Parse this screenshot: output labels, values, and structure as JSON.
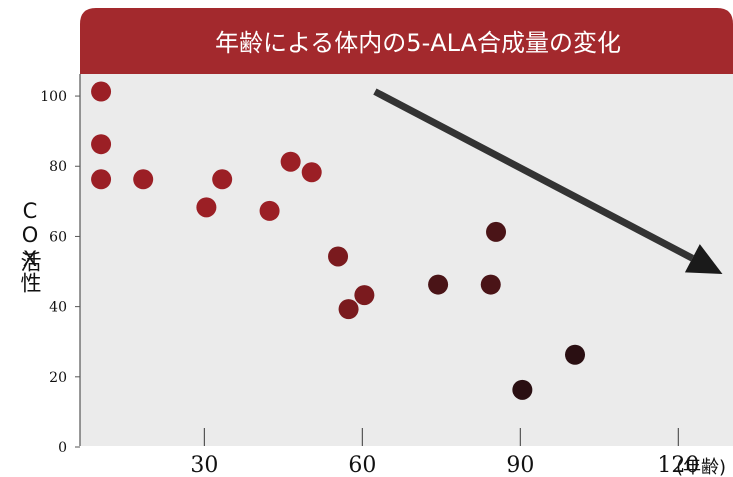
{
  "chart_data": {
    "type": "scatter",
    "title": "年齢による体内の5-ALA合成量の変化",
    "ylabel_latin": "COX",
    "ylabel_kanji": "活性",
    "xlabel_unit": "(年齢)",
    "xlim": [
      6,
      130
    ],
    "ylim": [
      0,
      106
    ],
    "x_ticks": [
      30,
      60,
      90,
      120
    ],
    "y_ticks": [
      0,
      20,
      40,
      60,
      80,
      100
    ],
    "grid": false,
    "trend_arrow": {
      "from": [
        62,
        101
      ],
      "to": [
        128,
        49
      ]
    },
    "points": [
      {
        "x": 10,
        "y": 101,
        "tone": "light"
      },
      {
        "x": 10,
        "y": 86,
        "tone": "light"
      },
      {
        "x": 10,
        "y": 76,
        "tone": "light"
      },
      {
        "x": 18,
        "y": 76,
        "tone": "light"
      },
      {
        "x": 30,
        "y": 68,
        "tone": "light"
      },
      {
        "x": 33,
        "y": 76,
        "tone": "light"
      },
      {
        "x": 42,
        "y": 67,
        "tone": "light"
      },
      {
        "x": 46,
        "y": 81,
        "tone": "light"
      },
      {
        "x": 50,
        "y": 78,
        "tone": "light"
      },
      {
        "x": 55,
        "y": 54,
        "tone": "mid"
      },
      {
        "x": 57,
        "y": 39,
        "tone": "mid"
      },
      {
        "x": 60,
        "y": 43,
        "tone": "mid"
      },
      {
        "x": 74,
        "y": 46,
        "tone": "dark"
      },
      {
        "x": 84,
        "y": 46,
        "tone": "dark"
      },
      {
        "x": 85,
        "y": 61,
        "tone": "dark"
      },
      {
        "x": 90,
        "y": 16,
        "tone": "darkest"
      },
      {
        "x": 100,
        "y": 26,
        "tone": "darkest"
      }
    ]
  },
  "colors": {
    "banner": "#a3292d",
    "plot_bg": "#ebebeb",
    "light": "#9b1f25",
    "mid": "#7a1a1e",
    "dark": "#4a1417",
    "darkest": "#2a0f12",
    "arrow": "#333333",
    "axis": "#555555"
  }
}
